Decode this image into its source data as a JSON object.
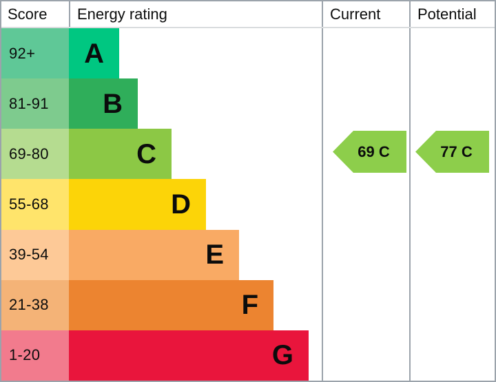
{
  "header": {
    "score": "Score",
    "energy_rating": "Energy rating",
    "current": "Current",
    "potential": "Potential"
  },
  "bands": [
    {
      "letter": "A",
      "range": "92+",
      "bar_color": "#00c781",
      "score_color": "#5fc897"
    },
    {
      "letter": "B",
      "range": "81-91",
      "bar_color": "#2fae5a",
      "score_color": "#7ecb8e"
    },
    {
      "letter": "C",
      "range": "69-80",
      "bar_color": "#8cc845",
      "score_color": "#b5dc90"
    },
    {
      "letter": "D",
      "range": "55-68",
      "bar_color": "#fcd408",
      "score_color": "#ffe46b"
    },
    {
      "letter": "E",
      "range": "39-54",
      "bar_color": "#f9aa64",
      "score_color": "#fdc997"
    },
    {
      "letter": "F",
      "range": "21-38",
      "bar_color": "#ec8430",
      "score_color": "#f4b377"
    },
    {
      "letter": "G",
      "range": "1-20",
      "bar_color": "#e9153c",
      "score_color": "#f27b8d"
    }
  ],
  "ratings": {
    "current": {
      "label": "69 C",
      "value": 69,
      "band": "C",
      "arrow_color": "#8dce4b"
    },
    "potential": {
      "label": "77 C",
      "value": 77,
      "band": "C",
      "arrow_color": "#8dce4b"
    }
  },
  "grid_color": "#9ba3ab",
  "chart_data": {
    "type": "bar",
    "title": "Energy rating (EPC band chart)",
    "columns": [
      "Score",
      "Energy rating",
      "Current",
      "Potential"
    ],
    "categories": [
      "A",
      "B",
      "C",
      "D",
      "E",
      "F",
      "G"
    ],
    "score_ranges": [
      "92+",
      "81-91",
      "69-80",
      "55-68",
      "39-54",
      "21-38",
      "1-20"
    ],
    "band_colors": [
      "#00c781",
      "#2fae5a",
      "#8cc845",
      "#fcd408",
      "#f9aa64",
      "#ec8430",
      "#e9153c"
    ],
    "bar_relative_lengths": [
      73,
      100,
      149,
      199,
      247,
      297,
      348
    ],
    "current_rating": {
      "value": 69,
      "band": "C"
    },
    "potential_rating": {
      "value": 77,
      "band": "C"
    },
    "legend_position": "none",
    "grid": "off"
  }
}
